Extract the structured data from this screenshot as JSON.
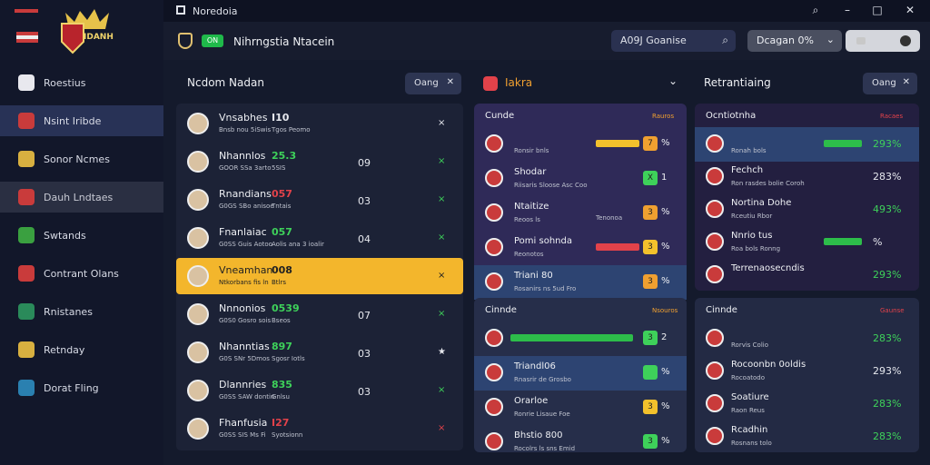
{
  "window": {
    "title": "Noredoia"
  },
  "brand": {
    "logo_text": "IDANH"
  },
  "sidebar": {
    "items": [
      {
        "label": "Roestius",
        "icon": "list-icon",
        "color": "#e8e8ee"
      },
      {
        "label": "Nsint Iribde",
        "icon": "flag-icon",
        "color": "#c93b3b"
      },
      {
        "label": "Sonor Ncmes",
        "icon": "shield-icon",
        "color": "#d8b040"
      },
      {
        "label": "Dauh Lndtaes",
        "icon": "flag-icon",
        "color": "#c93b3b"
      },
      {
        "label": "Swtands",
        "icon": "shield-icon",
        "color": "#3aa040"
      },
      {
        "label": "Contrant Olans",
        "icon": "shield-icon",
        "color": "#c93b3b"
      },
      {
        "label": "Rnistanes",
        "icon": "shield-icon",
        "color": "#2a8a5a"
      },
      {
        "label": "Retnday",
        "icon": "shield-icon",
        "color": "#d8b040"
      },
      {
        "label": "Dorat Fling",
        "icon": "shield-icon",
        "color": "#2a80b0"
      }
    ]
  },
  "header": {
    "badge": "ON",
    "title": "Nihrngstia Ntacein",
    "search": "A09J Goanise",
    "dropdown": "Dcagan 0%"
  },
  "players": {
    "title": "Ncdom Nadan",
    "filter": "Oang",
    "rows": [
      {
        "name": "Vnsabhes",
        "sub": "Bnsb nou 5iSwis",
        "v1": "I10",
        "v1c": "#e6e8ee",
        "sub2": "Tgos Peomo",
        "v2": "",
        "act": "×",
        "actc": "#e6e8ee"
      },
      {
        "name": "Nhannlos",
        "sub": "GOOR SSa 3arto",
        "v1": "25.3",
        "v1c": "#3ed15a",
        "sub2": "5SIS",
        "v2": "09",
        "act": "×",
        "actc": "#3ed15a"
      },
      {
        "name": "Rnandians",
        "sub": "G0GS SBo anisoe",
        "v1": "057",
        "v1c": "#e2424a",
        "sub2": "Tntais",
        "v2": "03",
        "act": "×",
        "actc": "#3ed15a"
      },
      {
        "name": "Fnanlaiac",
        "sub": "G0SS Guis Aotoo",
        "v1": "057",
        "v1c": "#3ed15a",
        "sub2": "Aolis ana 3 ioalir",
        "v2": "04",
        "act": "×",
        "actc": "#3ed15a"
      },
      {
        "name": "Vneamhan",
        "sub": "Ntkorbans fis ln",
        "v1": "008",
        "v1c": "#222",
        "sub2": "Btlrs",
        "v2": "",
        "act": "×",
        "actc": "#222"
      },
      {
        "name": "Nnnonios",
        "sub": "G0S0 Gosro sois",
        "v1": "0539",
        "v1c": "#3ed15a",
        "sub2": "Bseos",
        "v2": "07",
        "act": "×",
        "actc": "#3ed15a"
      },
      {
        "name": "Nhanntias",
        "sub": "G0S SNr 5Dmos",
        "v1": "897",
        "v1c": "#3ed15a",
        "sub2": "Sgosr Iotls",
        "v2": "03",
        "act": "★",
        "actc": "#e6e8ee"
      },
      {
        "name": "Dlannries",
        "sub": "G0SS SAW dontin",
        "v1": "835",
        "v1c": "#3ed15a",
        "sub2": "Gnlsu",
        "v2": "03",
        "act": "×",
        "actc": "#3ed15a"
      },
      {
        "name": "Fhanfusia",
        "sub": "G0SS SIS Ms Fi",
        "v1": "I27",
        "v1c": "#e2424a",
        "sub2": "Syotsionn",
        "v2": "",
        "act": "×",
        "actc": "#e2424a"
      }
    ]
  },
  "matches": {
    "title": "Iakra",
    "group1": {
      "label": "Cunde",
      "right": "Rauros",
      "rows": [
        {
          "t": "",
          "s": "Ronsir bnls",
          "bar": "#f3c12c",
          "bx": "7",
          "bxc": "#f0a030",
          "pc": "%"
        },
        {
          "t": "Shodar",
          "s": "Riisaris Sloose Asc Coo",
          "bar": "",
          "bx": "X",
          "bxc": "#3ed15a",
          "pc": "1"
        },
        {
          "t": "Ntaitize",
          "s": "Reoos ls",
          "bar": "",
          "bx": "3",
          "bxc": "#f0a030",
          "pc": "%",
          "side": "Tenonoa"
        },
        {
          "t": "Pomi sohnda",
          "s": "Reonotos",
          "bar": "#e2424a",
          "bx": "3",
          "bxc": "#f3c12c",
          "pc": "%"
        },
        {
          "t": "Triani 80",
          "s": "Rosanirs ns 5ud Fro",
          "bar": "",
          "bx": "3",
          "bxc": "#f0a030",
          "pc": "%"
        }
      ]
    },
    "group2": {
      "label": "Cinnde",
      "right": "Nsouros",
      "rows": [
        {
          "t": "",
          "s": "",
          "bar": "#2dbd4a",
          "bx": "3",
          "bxc": "#3ed15a",
          "pc": "2"
        },
        {
          "t": "Triandl06",
          "s": "Rnasrir de Grosbo",
          "bar": "",
          "bx": "",
          "bxc": "#3ed15a",
          "pc": "%"
        },
        {
          "t": "Orarloe",
          "s": "Ronrie Lisaue Foe",
          "bar": "",
          "bx": "3",
          "bxc": "#f3c12c",
          "pc": "%"
        },
        {
          "t": "Bhstio 800",
          "s": "Rocolrs ls sns Emid",
          "bar": "",
          "bx": "3",
          "bxc": "#3ed15a",
          "pc": "%"
        }
      ]
    }
  },
  "ratings": {
    "title": "Retrantiaing",
    "filter": "Oang",
    "group1": {
      "label": "Ocntiotnha",
      "right": "Racaes",
      "rows": [
        {
          "t": "",
          "s": "Ronah bols",
          "bar": true,
          "pc": "293%",
          "pcc": "#3ed15a"
        },
        {
          "t": "Fechch",
          "s": "Ron rasdes bolie Coroh",
          "bar": false,
          "pc": "283%",
          "pcc": "#e6e8ee"
        },
        {
          "t": "Nortina Dohe",
          "s": "Rceutiu Rbor",
          "bar": false,
          "pc": "493%",
          "pcc": "#3ed15a"
        },
        {
          "t": "Nnrio tus",
          "s": "Roa bols Ronng",
          "bar": true,
          "pc": "%",
          "pcc": "#e6e8ee"
        },
        {
          "t": "Terrenaosecndis",
          "s": "",
          "bar": false,
          "pc": "293%",
          "pcc": "#3ed15a"
        }
      ]
    },
    "group2": {
      "label": "Cinnde",
      "right": "Gaunse",
      "rows": [
        {
          "t": "",
          "s": "Rorvis Colio",
          "bar": false,
          "pc": "283%",
          "pcc": "#3ed15a"
        },
        {
          "t": "Rocoonbn 0oldis",
          "s": "Rocoatodo",
          "bar": false,
          "pc": "293%",
          "pcc": "#e6e8ee"
        },
        {
          "t": "Soatiure",
          "s": "Raon Reus",
          "bar": false,
          "pc": "283%",
          "pcc": "#3ed15a"
        },
        {
          "t": "Rcadhin",
          "s": "Rosnans tolo",
          "bar": false,
          "pc": "283%",
          "pcc": "#3ed15a"
        }
      ]
    }
  }
}
